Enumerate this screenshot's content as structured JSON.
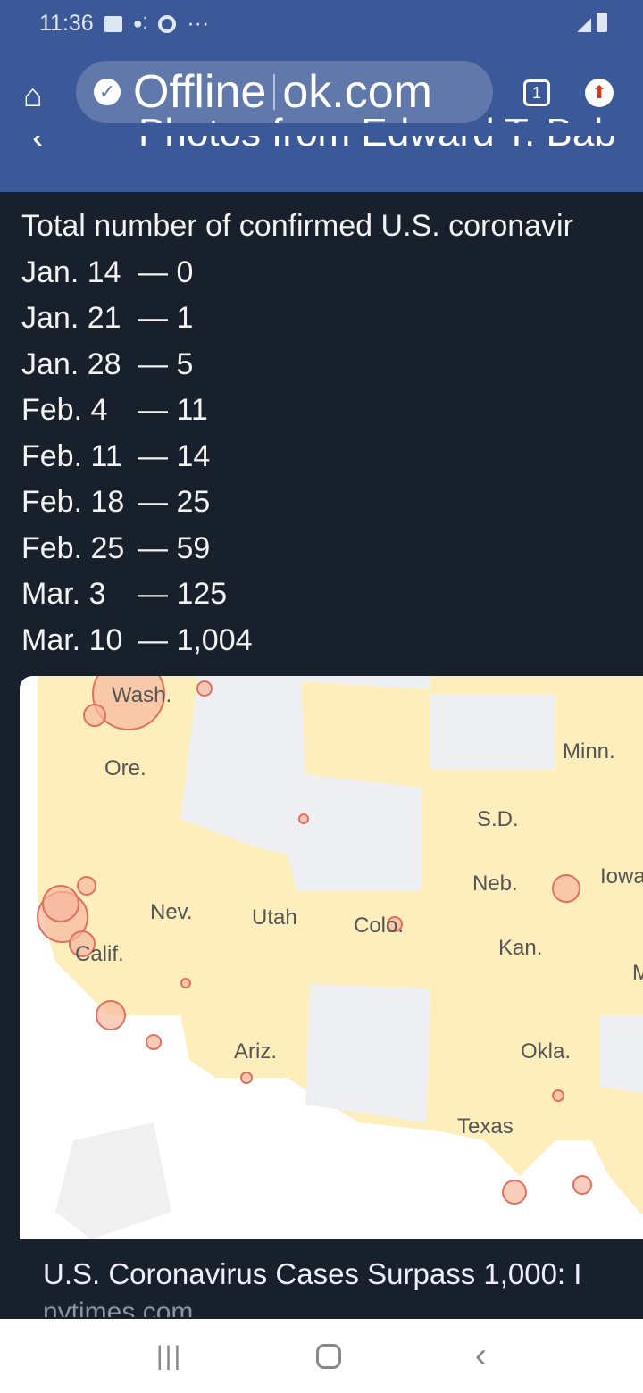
{
  "status_bar": {
    "time": "11:36",
    "icons": [
      "image-icon",
      "assistant-icon",
      "chrome-icon",
      "more-icon"
    ],
    "right_icons": [
      "signal-icon",
      "battery-icon"
    ]
  },
  "browser": {
    "url_status": "Offline",
    "url_text": "ok.com",
    "tab_count": "1"
  },
  "header": {
    "title": "Photos from Edward T. Bab"
  },
  "post": {
    "heading": "Total number of confirmed U.S. coronavir",
    "entries": [
      {
        "date": "Jan. 14",
        "count": "0"
      },
      {
        "date": "Jan. 21",
        "count": "1"
      },
      {
        "date": "Jan. 28",
        "count": "5"
      },
      {
        "date": "Feb. 4",
        "count": "11"
      },
      {
        "date": "Feb. 11",
        "count": "14"
      },
      {
        "date": "Feb. 18",
        "count": "25"
      },
      {
        "date": "Feb. 25",
        "count": "59"
      },
      {
        "date": "Mar. 3",
        "count": "125"
      },
      {
        "date": "Mar. 10",
        "count": "1,004"
      }
    ],
    "map_labels": [
      "Wash.",
      "Ore.",
      "Calif.",
      "Nev.",
      "Utah",
      "Colo.",
      "Ariz.",
      "S.D.",
      "Neb.",
      "Kan.",
      "Okla.",
      "Texas",
      "Minn.",
      "Iowa",
      "M"
    ],
    "link_title": "U.S. Coronavirus Cases Surpass 1,000: I",
    "link_source": "nytimes.com"
  },
  "colors": {
    "header": "#3b5998",
    "content_bg": "#17202b",
    "map_state": "#fdeebb",
    "case_dot": "#e88a7a"
  }
}
